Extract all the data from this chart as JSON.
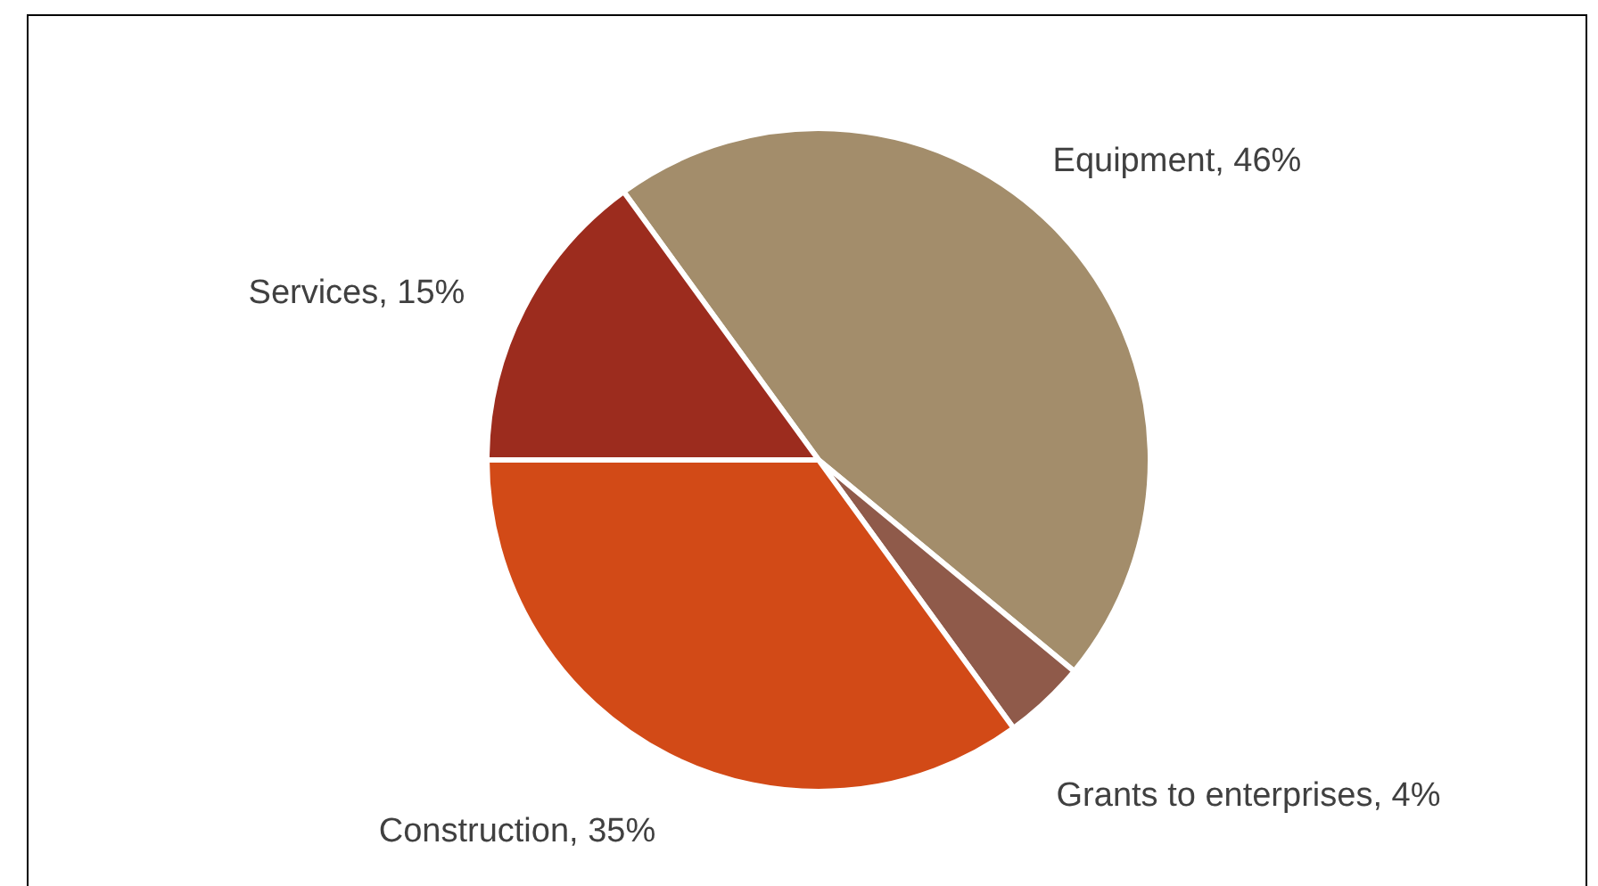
{
  "chart_data": {
    "type": "pie",
    "categories": [
      "Equipment",
      "Grants to enterprises",
      "Construction",
      "Services"
    ],
    "values": [
      46,
      4,
      35,
      15
    ],
    "value_labels": [
      "46%",
      "4%",
      "35%",
      "15%"
    ],
    "colors": [
      "#a38d6b",
      "#8f5a4a",
      "#d24a17",
      "#9c2c1e"
    ]
  }
}
